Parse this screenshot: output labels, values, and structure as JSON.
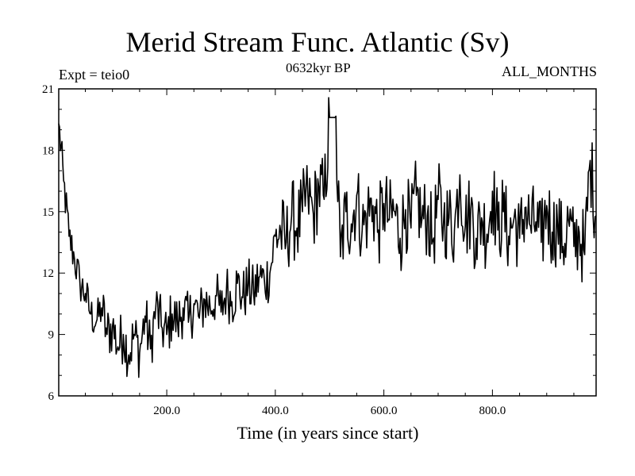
{
  "chart_data": {
    "type": "line",
    "title": "Merid Stream Func. Atlantic (Sv)",
    "subtitle": "0632kyr BP",
    "expt_label": "Expt = teio0",
    "period_label": "ALL_MONTHS",
    "xlabel": "Time (in years since start)",
    "ylabel": "",
    "xlim": [
      1,
      991
    ],
    "ylim": [
      6,
      21
    ],
    "xticks": [
      200,
      400,
      600,
      800
    ],
    "xtick_labels": [
      "200.0",
      "400.0",
      "600.0",
      "800.0"
    ],
    "yticks": [
      6,
      9,
      12,
      15,
      18,
      21
    ],
    "ytick_labels": [
      "6",
      "9",
      "12",
      "15",
      "18",
      "21"
    ],
    "series": [
      {
        "name": "Merid Stream Func. Atlantic",
        "color": "#000000",
        "x": [
          1,
          10,
          20,
          30,
          40,
          50,
          60,
          70,
          80,
          90,
          100,
          110,
          120,
          130,
          140,
          150,
          160,
          170,
          180,
          190,
          200,
          210,
          220,
          230,
          240,
          250,
          260,
          270,
          280,
          290,
          300,
          310,
          320,
          330,
          340,
          350,
          360,
          370,
          380,
          390,
          400,
          410,
          420,
          430,
          440,
          450,
          460,
          470,
          480,
          490,
          500,
          510,
          520,
          530,
          540,
          550,
          560,
          570,
          580,
          590,
          600,
          610,
          620,
          630,
          640,
          650,
          660,
          670,
          680,
          690,
          700,
          710,
          720,
          730,
          740,
          750,
          760,
          770,
          780,
          790,
          800,
          810,
          820,
          830,
          840,
          850,
          860,
          870,
          880,
          890,
          900,
          910,
          920,
          930,
          940,
          950,
          960,
          970,
          980,
          991
        ],
        "values": [
          19.3,
          16.5,
          13.8,
          12.7,
          11.5,
          11.0,
          10.0,
          9.6,
          10.3,
          9.0,
          9.4,
          8.4,
          9.0,
          8.0,
          9.0,
          8.1,
          9.9,
          8.3,
          10.4,
          9.4,
          9.0,
          10.0,
          9.5,
          10.3,
          9.6,
          10.5,
          9.8,
          10.7,
          10.3,
          10.9,
          10.1,
          11.2,
          10.6,
          11.5,
          10.8,
          11.4,
          11.0,
          11.8,
          11.6,
          12.0,
          13.8,
          14.0,
          13.5,
          14.8,
          14.2,
          15.0,
          15.8,
          14.9,
          16.2,
          15.6,
          19.6,
          19.6,
          12.8,
          15.0,
          14.4,
          15.8,
          14.1,
          14.9,
          15.3,
          14.1,
          15.4,
          14.6,
          15.0,
          13.7,
          15.1,
          14.2,
          15.8,
          14.6,
          14.8,
          13.6,
          15.6,
          14.5,
          14.7,
          14.1,
          16.8,
          14.3,
          15.1,
          13.7,
          14.7,
          13.9,
          16.0,
          14.1,
          15.0,
          13.8,
          14.7,
          13.7,
          15.2,
          14.3,
          14.5,
          13.5,
          15.3,
          14.0,
          14.4,
          13.3,
          14.6,
          13.3,
          14.0,
          12.9,
          17.5,
          14.8
        ]
      }
    ]
  }
}
